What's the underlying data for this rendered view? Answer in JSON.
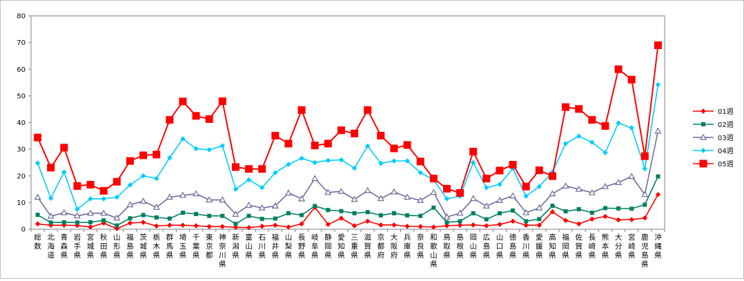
{
  "chart_data": {
    "type": "line",
    "title": "",
    "xlabel": "",
    "ylabel": "",
    "ylim": [
      0,
      80
    ],
    "yticks": [
      0,
      10,
      20,
      30,
      40,
      50,
      60,
      70,
      80
    ],
    "grid": false,
    "legend_position": "right",
    "categories": [
      "総数",
      "北海道",
      "青森県",
      "岩手県",
      "宮城県",
      "秋田県",
      "山形県",
      "福島県",
      "茨城県",
      "栃木県",
      "群馬県",
      "埼玉県",
      "千葉県",
      "東京都",
      "神奈川県",
      "新潟県",
      "富山県",
      "石川県",
      "福井県",
      "山梨県",
      "長野県",
      "岐阜県",
      "静岡県",
      "愛知県",
      "三重県",
      "滋賀県",
      "京都府",
      "大阪府",
      "兵庫県",
      "奈良県",
      "和歌山県",
      "鳥取県",
      "島根県",
      "岡山県",
      "広島県",
      "山口県",
      "徳島県",
      "香川県",
      "愛媛県",
      "高知県",
      "福岡県",
      "佐賀県",
      "長崎県",
      "熊本県",
      "大分県",
      "宮崎県",
      "鹿児島県",
      "沖縄県"
    ],
    "series": [
      {
        "name": "01週",
        "color": "#ff0000",
        "marker": "diamond",
        "values": [
          2.0,
          1.5,
          1.5,
          1.4,
          0.8,
          2.3,
          0.2,
          2.3,
          2.6,
          1.2,
          1.5,
          1.5,
          1.3,
          1.0,
          1.0,
          0.7,
          0.6,
          1.1,
          1.5,
          0.8,
          2.0,
          8.2,
          1.8,
          4.1,
          1.3,
          3.0,
          1.6,
          1.6,
          1.1,
          1.0,
          0.8,
          1.3,
          1.5,
          1.6,
          1.3,
          1.8,
          3.0,
          1.5,
          1.5,
          6.5,
          3.3,
          2.0,
          3.8,
          4.8,
          3.5,
          3.6,
          4.2,
          13.0
        ]
      },
      {
        "name": "02週",
        "color": "#007f5f",
        "marker": "square",
        "values": [
          5.4,
          2.5,
          2.6,
          2.5,
          2.6,
          3.3,
          1.4,
          4.1,
          5.3,
          4.4,
          4.0,
          6.2,
          5.7,
          5.0,
          5.0,
          2.0,
          5.0,
          3.9,
          4.0,
          6.0,
          5.3,
          8.7,
          7.2,
          6.8,
          6.0,
          6.4,
          5.2,
          6.0,
          5.2,
          5.0,
          8.1,
          2.6,
          3.0,
          6.0,
          3.7,
          6.0,
          7.0,
          3.0,
          3.8,
          8.8,
          6.7,
          7.5,
          6.2,
          7.9,
          7.8,
          7.7,
          9.2,
          19.8
        ]
      },
      {
        "name": "03週",
        "color": "#6b6b9b",
        "marker": "triangle",
        "values": [
          12.0,
          4.9,
          6.2,
          5.0,
          6.0,
          6.0,
          4.2,
          9.2,
          10.5,
          8.2,
          12.0,
          12.7,
          13.3,
          11.0,
          11.0,
          5.6,
          9.0,
          8.0,
          8.7,
          13.6,
          11.4,
          19.0,
          13.8,
          14.2,
          11.2,
          14.5,
          11.5,
          14.0,
          12.0,
          10.8,
          13.8,
          4.6,
          6.0,
          11.5,
          8.7,
          10.8,
          12.5,
          6.2,
          8.0,
          13.3,
          16.2,
          15.0,
          13.7,
          16.0,
          17.5,
          19.8,
          13.0,
          36.8
        ]
      },
      {
        "name": "04週",
        "color": "#00ccff",
        "marker": "diamond",
        "values": [
          24.8,
          11.6,
          21.4,
          7.5,
          11.4,
          11.4,
          12.0,
          16.6,
          20.0,
          19.0,
          26.8,
          33.9,
          30.2,
          29.8,
          31.3,
          15.0,
          18.5,
          15.6,
          21.2,
          24.3,
          26.6,
          25.0,
          25.8,
          26.0,
          22.9,
          31.2,
          24.7,
          25.6,
          25.6,
          21.2,
          18.5,
          11.4,
          12.4,
          25.0,
          15.6,
          16.8,
          22.8,
          12.4,
          16.0,
          21.4,
          32.1,
          34.9,
          32.6,
          28.7,
          39.8,
          38.0,
          22.7,
          54.2
        ]
      },
      {
        "name": "05週",
        "color": "#ff0000",
        "marker": "big-square",
        "values": [
          34.4,
          23.1,
          30.6,
          16.2,
          16.7,
          14.4,
          17.8,
          25.6,
          27.7,
          28.0,
          41.0,
          47.9,
          42.5,
          41.3,
          48.0,
          23.3,
          22.6,
          22.6,
          35.1,
          32.1,
          44.7,
          31.4,
          32.1,
          37.1,
          35.9,
          44.7,
          35.1,
          30.3,
          31.6,
          25.4,
          19.0,
          15.2,
          13.6,
          29.1,
          19.0,
          22.0,
          24.2,
          16.0,
          22.1,
          19.9,
          45.8,
          45.1,
          41.0,
          38.7,
          60.0,
          56.1,
          27.4,
          69.0
        ]
      }
    ]
  }
}
